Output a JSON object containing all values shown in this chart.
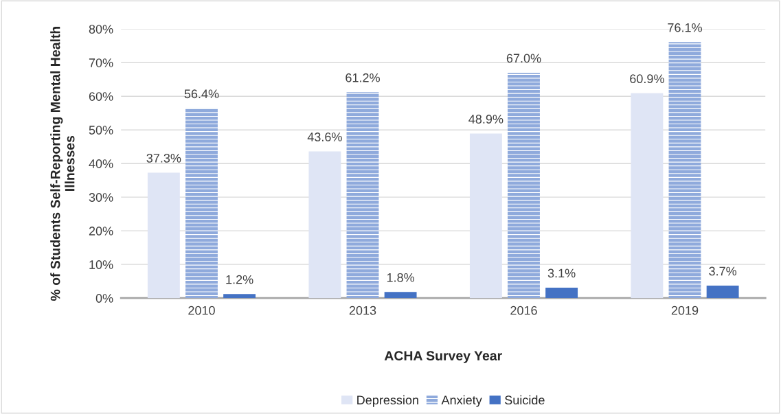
{
  "chart_data": {
    "type": "bar",
    "xlabel": "ACHA Survey Year",
    "ylabel": "% of Students Self-Reporting Mental Health Illnesses",
    "categories": [
      "2010",
      "2013",
      "2016",
      "2019"
    ],
    "series": [
      {
        "name": "Depression",
        "color": "#dfe5f5",
        "values": [
          37.3,
          43.6,
          48.9,
          60.9
        ],
        "value_labels": [
          "37.3%",
          "43.6%",
          "48.9%",
          "60.9%"
        ]
      },
      {
        "name": "Anxiety",
        "color": "#8faadc",
        "values": [
          56.4,
          61.2,
          67.0,
          76.1
        ],
        "value_labels": [
          "56.4%",
          "61.2%",
          "67.0%",
          "76.1%"
        ]
      },
      {
        "name": "Suicide",
        "color": "#4472c4",
        "values": [
          1.2,
          1.8,
          3.1,
          3.7
        ],
        "value_labels": [
          "1.2%",
          "1.8%",
          "3.1%",
          "3.7%"
        ]
      }
    ],
    "ylim": [
      0,
      80
    ],
    "yticks": [
      {
        "value": 0,
        "label": "0%"
      },
      {
        "value": 10,
        "label": "10%"
      },
      {
        "value": 20,
        "label": "20%"
      },
      {
        "value": 30,
        "label": "30%"
      },
      {
        "value": 40,
        "label": "40%"
      },
      {
        "value": 50,
        "label": "50%"
      },
      {
        "value": 60,
        "label": "60%"
      },
      {
        "value": 70,
        "label": "70%"
      },
      {
        "value": 80,
        "label": "80%"
      }
    ],
    "grid": "y",
    "legend": "bottom"
  }
}
